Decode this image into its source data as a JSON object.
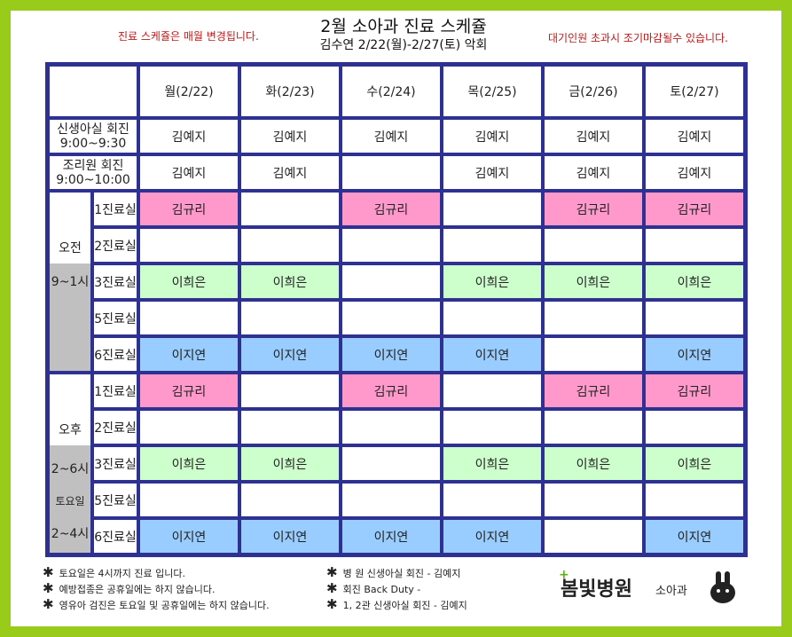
{
  "notes": {
    "left": "진료 스케쥴은 매월 변경됩니다.",
    "right": "대기인원 초과시 조기마감될수 있습니다."
  },
  "title": {
    "line1": "2월 소아과 진료 스케쥴",
    "line2": "김수연 2/22(월)-2/27(토) 악회"
  },
  "days": [
    "월(2/22)",
    "화(2/23)",
    "수(2/24)",
    "목(2/25)",
    "금(2/26)",
    "토(2/27)"
  ],
  "staff_rows": [
    {
      "label1": "신생아실 회진",
      "label2": "9:00~9:30",
      "cells": [
        "김예지",
        "김예지",
        "김예지",
        "김예지",
        "김예지",
        "김예지"
      ]
    },
    {
      "label1": "조리원 회진",
      "label2": "9:00~10:00",
      "cells": [
        "김예지",
        "김예지",
        "",
        "김예지",
        "김예지",
        "김예지"
      ]
    }
  ],
  "am": {
    "label": "오전",
    "time": "9~1시",
    "rooms": [
      {
        "room": "1진료실",
        "cells": [
          "김규리",
          "",
          "김규리",
          "",
          "김규리",
          "김규리"
        ]
      },
      {
        "room": "2진료실",
        "cells": [
          "",
          "",
          "",
          "",
          "",
          ""
        ]
      },
      {
        "room": "3진료실",
        "cells": [
          "이희은",
          "이희은",
          "",
          "이희은",
          "이희은",
          "이희은"
        ]
      },
      {
        "room": "5진료실",
        "cells": [
          "",
          "",
          "",
          "",
          "",
          ""
        ]
      },
      {
        "room": "6진료실",
        "cells": [
          "이지연",
          "이지연",
          "이지연",
          "이지연",
          "",
          "이지연"
        ]
      }
    ]
  },
  "pm": {
    "label": "오후",
    "time": "2~6시",
    "sat_label": "토요일",
    "sat_time": "2~4시",
    "rooms": [
      {
        "room": "1진료실",
        "cells": [
          "김규리",
          "",
          "김규리",
          "",
          "김규리",
          "김규리"
        ]
      },
      {
        "room": "2진료실",
        "cells": [
          "",
          "",
          "",
          "",
          "",
          ""
        ]
      },
      {
        "room": "3진료실",
        "cells": [
          "이희은",
          "이희은",
          "",
          "이희은",
          "이희은",
          "이희은"
        ]
      },
      {
        "room": "5진료실",
        "cells": [
          "",
          "",
          "",
          "",
          "",
          ""
        ]
      },
      {
        "room": "6진료실",
        "cells": [
          "이지연",
          "이지연",
          "이지연",
          "이지연",
          "",
          "이지연"
        ]
      }
    ]
  },
  "room_colors": {
    "1진료실": "#ff99cc",
    "3진료실": "#ccffcc",
    "6진료실": "#99ccff"
  },
  "footer": {
    "left": [
      "토요일은 4시까지 진료 입니다.",
      "예방접종은 공휴일에는 하지 않습니다.",
      "영유아 검진은 토요일 및 공휴일에는 하지 않습니다."
    ],
    "right": [
      "병 원 신생아실 회진 - 김예지",
      "회진 Back Duty -",
      "1, 2관 신생아실 회진 - 김예지"
    ],
    "star": "✱"
  },
  "logo": {
    "cross": "+",
    "name": "봄빛병원",
    "dept": "소아과"
  }
}
